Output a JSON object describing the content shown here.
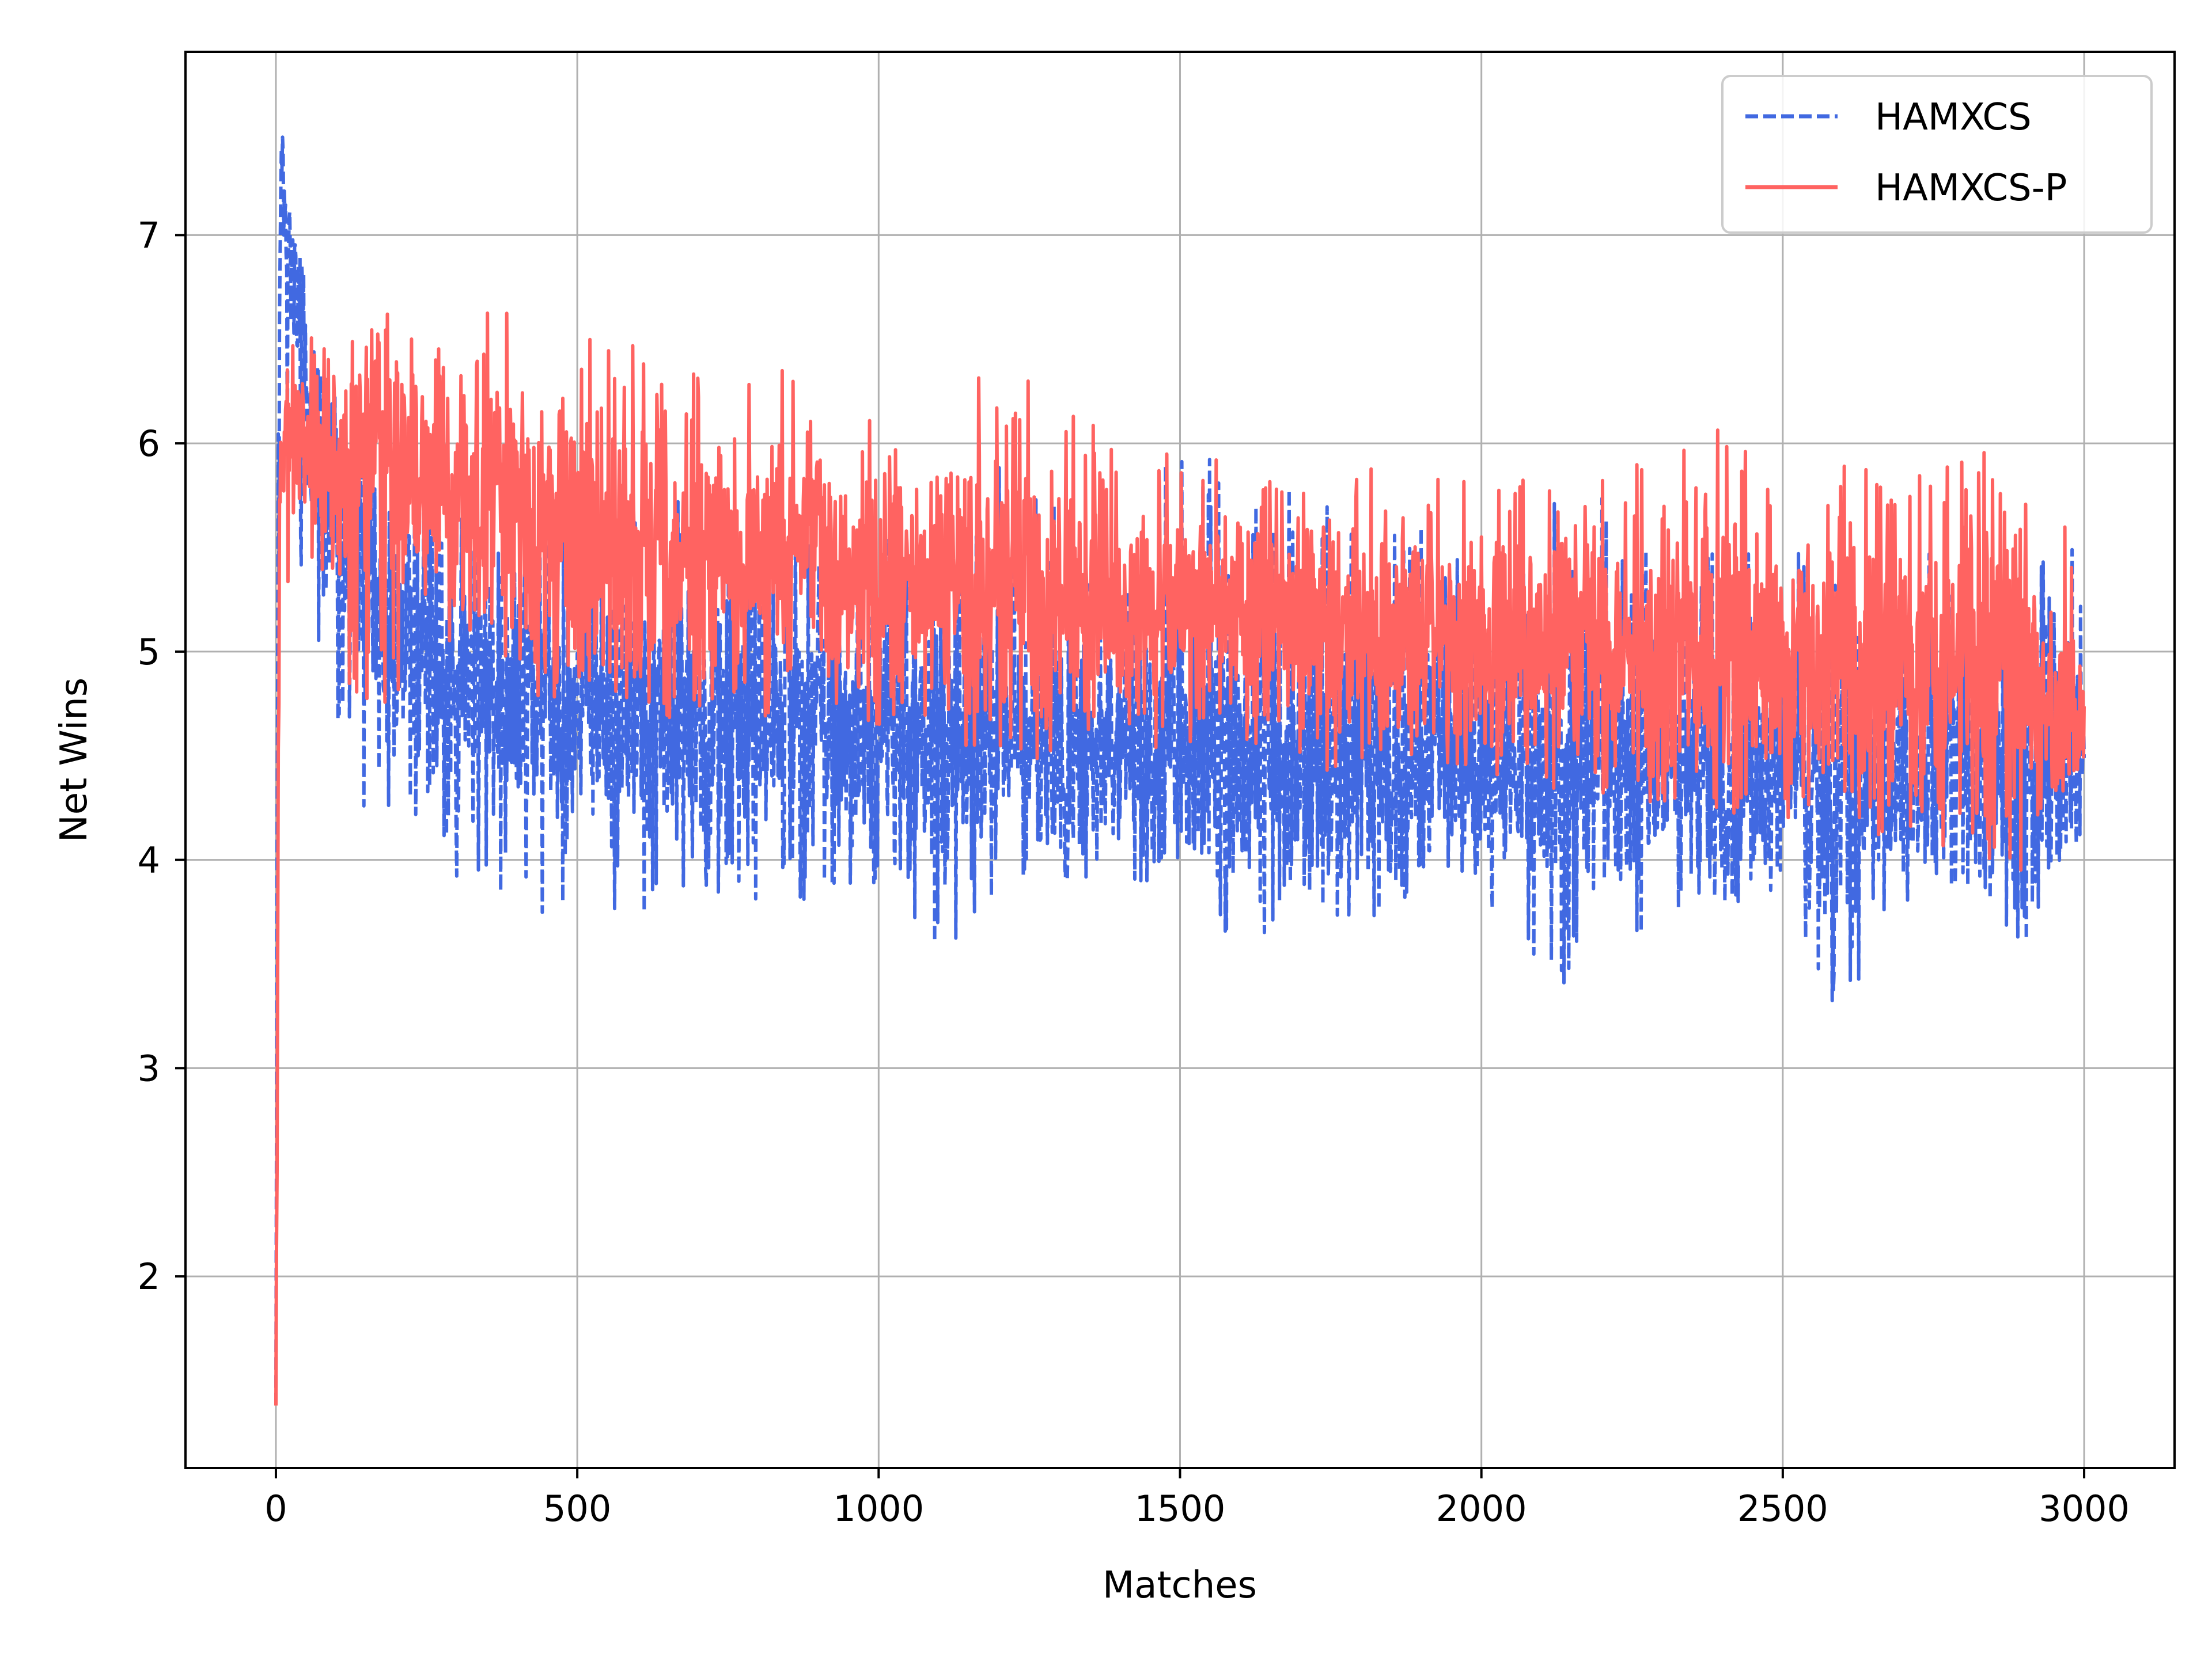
{
  "chart_data": {
    "type": "line",
    "xlabel": "Matches",
    "ylabel": "Net Wins",
    "xlim": [
      -150,
      3150
    ],
    "ylim": [
      1.08,
      7.88
    ],
    "xticks": [
      0,
      500,
      1000,
      1500,
      2000,
      2500,
      3000
    ],
    "xtick_labels": [
      "0",
      "500",
      "1000",
      "1500",
      "2000",
      "2500",
      "3000"
    ],
    "yticks": [
      2,
      3,
      4,
      5,
      6,
      7
    ],
    "ytick_labels": [
      "2",
      "3",
      "4",
      "5",
      "6",
      "7"
    ],
    "grid": true,
    "legend_position": "top-right",
    "series": [
      {
        "name": "HAMXCS",
        "color": "#4169E1",
        "dash": "dashed",
        "x": [
          0,
          3,
          6,
          10,
          15,
          25,
          40,
          60,
          80,
          100,
          150,
          200,
          250,
          300,
          400,
          500,
          600,
          700,
          800,
          900,
          1000,
          1100,
          1200,
          1300,
          1400,
          1500,
          1600,
          1700,
          1800,
          1900,
          2000,
          2100,
          2200,
          2300,
          2400,
          2500,
          2600,
          2700,
          2800,
          2900,
          3000
        ],
        "y": [
          2.1,
          4.8,
          6.6,
          7.55,
          7.0,
          6.8,
          6.5,
          6.1,
          5.8,
          5.6,
          5.25,
          5.1,
          5.0,
          4.95,
          4.8,
          4.75,
          4.7,
          4.75,
          4.65,
          4.7,
          4.6,
          4.6,
          4.65,
          4.55,
          4.6,
          4.55,
          4.6,
          4.5,
          4.55,
          4.5,
          4.5,
          4.45,
          4.5,
          4.5,
          4.45,
          4.45,
          4.35,
          4.4,
          4.45,
          4.4,
          4.6
        ],
        "y_min": [
          1.38,
          2.3,
          3.0,
          6.2,
          5.9,
          5.5,
          5.3,
          5.0,
          4.6,
          4.4,
          4.2,
          4.1,
          4.0,
          3.9,
          3.7,
          3.8,
          3.7,
          3.9,
          3.65,
          3.8,
          3.7,
          3.35,
          3.8,
          3.9,
          3.9,
          3.9,
          3.45,
          3.9,
          3.6,
          3.9,
          3.9,
          3.18,
          3.6,
          3.6,
          3.8,
          3.8,
          3.22,
          3.8,
          3.9,
          3.6,
          4.05
        ],
        "y_max": [
          2.2,
          6.2,
          7.0,
          7.55,
          7.15,
          7.1,
          6.9,
          6.6,
          6.4,
          6.2,
          6.0,
          5.9,
          5.8,
          5.8,
          5.75,
          5.7,
          5.65,
          5.85,
          5.6,
          5.7,
          5.55,
          5.65,
          6.0,
          5.75,
          5.6,
          6.05,
          5.8,
          5.85,
          5.8,
          5.6,
          5.5,
          5.7,
          5.85,
          5.5,
          5.5,
          5.5,
          5.6,
          5.5,
          5.5,
          5.65,
          5.45
        ]
      },
      {
        "name": "HAMXCS-P",
        "color": "#FF6361",
        "dash": "solid",
        "x": [
          0,
          3,
          6,
          10,
          15,
          25,
          40,
          60,
          80,
          100,
          150,
          200,
          250,
          300,
          400,
          500,
          600,
          700,
          800,
          900,
          1000,
          1100,
          1200,
          1300,
          1400,
          1500,
          1600,
          1700,
          1800,
          1900,
          2000,
          2100,
          2200,
          2300,
          2400,
          2500,
          2600,
          2700,
          2800,
          2900,
          3000
        ],
        "y": [
          1.38,
          3.5,
          5.6,
          6.1,
          5.9,
          6.0,
          6.0,
          5.95,
          5.9,
          5.85,
          5.9,
          5.9,
          5.85,
          5.8,
          5.7,
          5.55,
          5.5,
          5.45,
          5.45,
          5.45,
          5.4,
          5.35,
          5.3,
          5.25,
          5.2,
          5.2,
          5.2,
          5.15,
          5.1,
          5.1,
          5.05,
          5.05,
          5.0,
          5.0,
          5.0,
          4.95,
          4.95,
          4.95,
          4.9,
          4.9,
          4.6
        ],
        "y_min": [
          1.38,
          2.3,
          4.8,
          5.2,
          5.0,
          5.05,
          5.4,
          5.3,
          5.1,
          4.95,
          4.6,
          4.7,
          5.0,
          5.0,
          4.8,
          4.7,
          4.7,
          4.65,
          4.6,
          4.8,
          4.6,
          4.55,
          4.55,
          4.45,
          4.5,
          4.5,
          4.45,
          4.4,
          4.45,
          4.4,
          4.4,
          4.3,
          4.3,
          4.1,
          4.2,
          4.2,
          4.1,
          4.1,
          3.95,
          3.9,
          4.5
        ],
        "y_max": [
          1.5,
          4.5,
          6.3,
          6.7,
          6.5,
          6.8,
          6.6,
          6.75,
          6.5,
          6.6,
          6.55,
          6.65,
          6.5,
          6.8,
          6.6,
          6.65,
          6.5,
          6.4,
          6.3,
          6.45,
          6.55,
          6.3,
          6.5,
          6.2,
          6.0,
          6.0,
          5.9,
          5.95,
          6.1,
          5.8,
          6.0,
          5.8,
          5.9,
          5.9,
          6.25,
          5.9,
          5.95,
          5.85,
          6.2,
          5.9,
          5.5
        ]
      }
    ]
  }
}
